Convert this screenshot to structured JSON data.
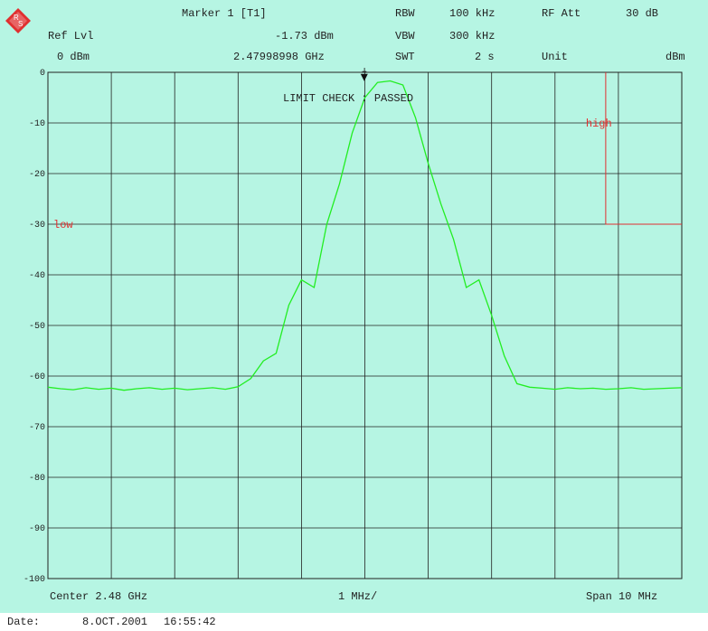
{
  "header": {
    "marker_title": "Marker 1 [T1]",
    "ref_lvl_label": "Ref Lvl",
    "ref_lvl_value": "0 dBm",
    "marker_level": "-1.73 dBm",
    "marker_freq": "2.47998998 GHz",
    "rbw_label": "RBW",
    "rbw_value": "100 kHz",
    "vbw_label": "VBW",
    "vbw_value": "300 kHz",
    "swt_label": "SWT",
    "swt_value": "2 s",
    "rf_att_label": "RF Att",
    "rf_att_value": "30 dB",
    "unit_label": "Unit",
    "unit_value": "dBm"
  },
  "footer": {
    "center": "Center 2.48 GHz",
    "div": "1 MHz/",
    "span": "Span 10 MHz",
    "date_label": "Date:",
    "date_value": "8.OCT.2001",
    "time_value": "16:55:42"
  },
  "colors": {
    "panel": "#b6f5e3",
    "plot_bg": "#b6f5e3",
    "trace": "#22ee22",
    "limit": "#e03030",
    "grid": "#222222"
  },
  "chart_data": {
    "type": "line",
    "title": "",
    "xlabel": "",
    "ylabel": "",
    "xlim": [
      2.475,
      2.485
    ],
    "ylim": [
      -100,
      0
    ],
    "yticks": [
      "0",
      "-10",
      "-20",
      "-30",
      "-40",
      "-50",
      "-60",
      "-70",
      "-80",
      "-90",
      "-100"
    ],
    "grid": true,
    "annotation": "LIMIT CHECK  : PASSED",
    "marker_label": "1",
    "marker_x": 2.47999,
    "marker_y": -1.73,
    "limits": [
      {
        "name": "low",
        "level": -30,
        "x_start": 2.475,
        "x_end": 2.475
      },
      {
        "name": "high",
        "level": -30,
        "x_start": 2.4838,
        "x_end": 2.485,
        "top": 0
      }
    ],
    "series": [
      {
        "x": [
          2.475,
          2.4752,
          2.4754,
          2.4756,
          2.4758,
          2.476,
          2.4762,
          2.4764,
          2.4766,
          2.4768,
          2.477,
          2.4772,
          2.4774,
          2.4776,
          2.4778,
          2.478,
          2.4782,
          2.4784,
          2.4786,
          2.4788,
          2.479,
          2.4792,
          2.4794,
          2.4796,
          2.4798,
          2.48,
          2.4802,
          2.4804,
          2.4806,
          2.4808,
          2.481,
          2.4812,
          2.4814,
          2.4816,
          2.4818,
          2.482,
          2.4822,
          2.4824,
          2.4826,
          2.4828,
          2.483,
          2.4832,
          2.4834,
          2.4836,
          2.4838,
          2.484,
          2.4842,
          2.4844,
          2.4846,
          2.4848,
          2.485
        ],
        "y": [
          -62.2,
          -62.5,
          -62.7,
          -62.3,
          -62.6,
          -62.4,
          -62.8,
          -62.5,
          -62.3,
          -62.6,
          -62.4,
          -62.7,
          -62.5,
          -62.3,
          -62.6,
          -62.1,
          -60.5,
          -57.0,
          -55.5,
          -46.0,
          -41.0,
          -42.5,
          -30.0,
          -22.0,
          -12.0,
          -5.0,
          -2.0,
          -1.7,
          -2.5,
          -9.0,
          -18.0,
          -26.0,
          -33.0,
          -42.5,
          -41.0,
          -48.0,
          -56.0,
          -61.5,
          -62.2,
          -62.4,
          -62.6,
          -62.3,
          -62.5,
          -62.4,
          -62.6,
          -62.5,
          -62.3,
          -62.6,
          -62.5,
          -62.4,
          -62.3
        ]
      }
    ]
  }
}
